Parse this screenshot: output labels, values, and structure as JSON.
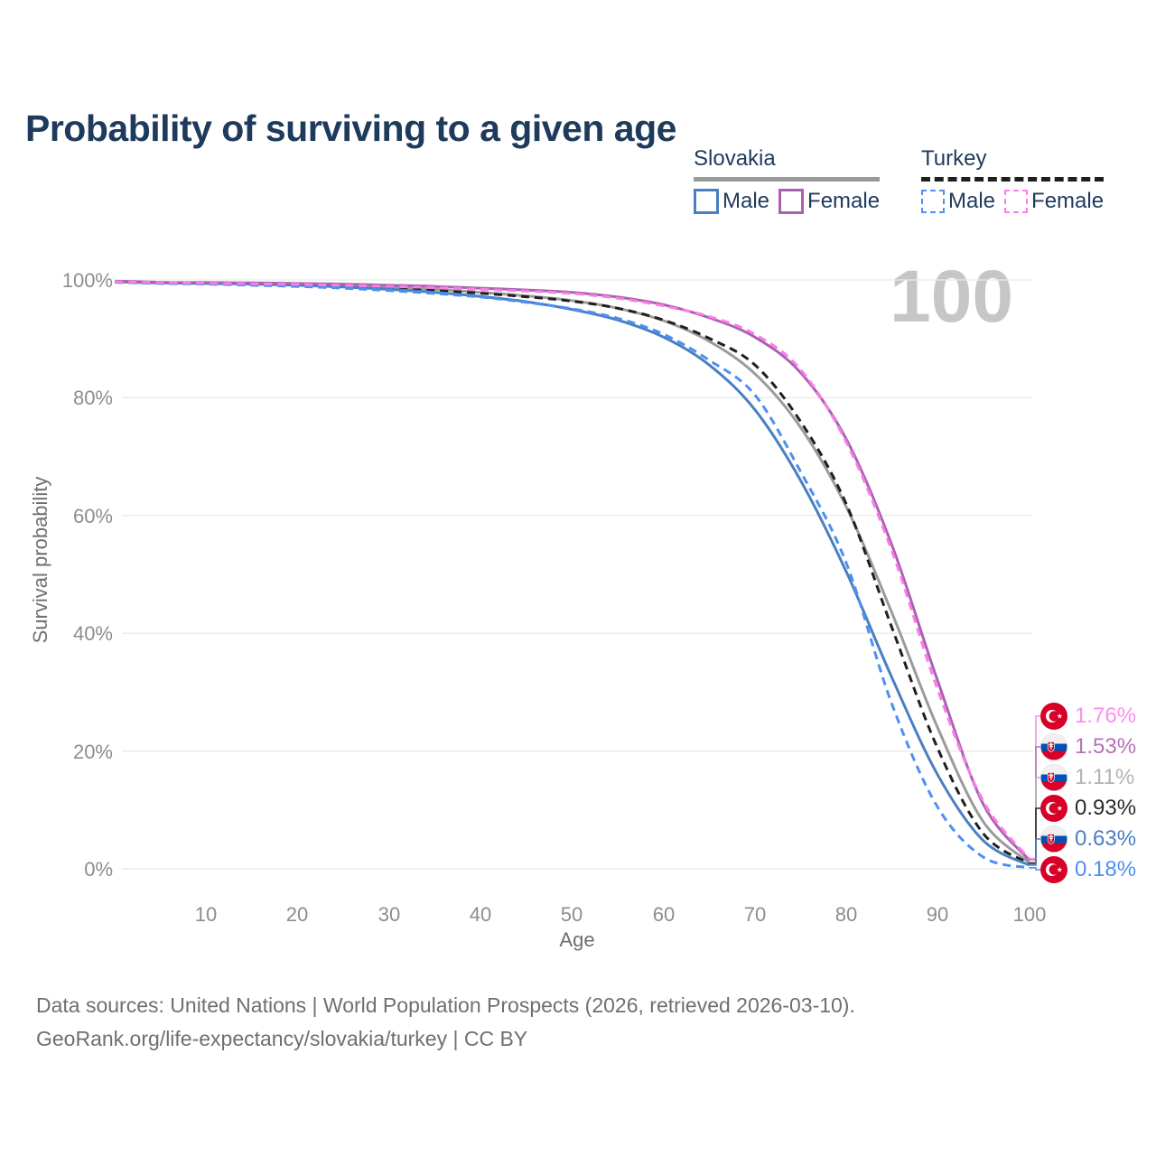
{
  "page": {
    "title": "Probability of surviving to a given age"
  },
  "legend": {
    "groups": [
      {
        "label": "Slovakia",
        "line_style": "solid",
        "underline_color": "#9a9a9a",
        "items": [
          {
            "label": "Male",
            "color": "#4a7fc1"
          },
          {
            "label": "Female",
            "color": "#aa62b0"
          }
        ]
      },
      {
        "label": "Turkey",
        "line_style": "dashed",
        "underline_color": "#1f1f1f",
        "items": [
          {
            "label": "Male",
            "color": "#4d8ff2"
          },
          {
            "label": "Female",
            "color": "#fb7ce8"
          }
        ]
      }
    ]
  },
  "chart_data": {
    "type": "line",
    "title": "Probability of surviving to a given age",
    "xlabel": "Age",
    "ylabel": "Survival probability",
    "xlim": [
      0,
      100
    ],
    "ylim": [
      0,
      100
    ],
    "grid": "horizontal",
    "x_ticks": [
      "10",
      "20",
      "30",
      "40",
      "50",
      "60",
      "70",
      "80",
      "90",
      "100"
    ],
    "y_ticks": [
      "100%",
      "80%",
      "60%",
      "40%",
      "20%",
      "0%"
    ],
    "age_marker": "100",
    "x": [
      0,
      5,
      10,
      15,
      20,
      25,
      30,
      35,
      40,
      45,
      50,
      55,
      60,
      65,
      70,
      75,
      80,
      85,
      90,
      95,
      100
    ],
    "series": [
      {
        "name": "Slovakia Male",
        "country": "slovakia",
        "sex": "male",
        "style": "solid",
        "color": "#4a7fc1",
        "values": [
          99.7,
          99.5,
          99.4,
          99.3,
          99.1,
          98.8,
          98.4,
          97.9,
          97.2,
          96.3,
          95.0,
          93.2,
          90.3,
          85.6,
          78.0,
          66.0,
          50.5,
          32.5,
          16.0,
          4.8,
          0.63
        ]
      },
      {
        "name": "Slovakia Female",
        "country": "slovakia",
        "sex": "female",
        "style": "solid",
        "color": "#aa62b0",
        "values": [
          99.8,
          99.6,
          99.55,
          99.5,
          99.4,
          99.3,
          99.1,
          98.9,
          98.6,
          98.3,
          97.9,
          97.1,
          95.8,
          93.6,
          90.3,
          84.3,
          73.0,
          55.0,
          32.0,
          11.0,
          1.53
        ]
      },
      {
        "name": "Slovakia Total",
        "country": "slovakia",
        "sex": "both",
        "style": "solid",
        "color": "#9b9b9b",
        "values": [
          99.75,
          99.55,
          99.45,
          99.38,
          99.25,
          99.05,
          98.75,
          98.4,
          97.9,
          97.3,
          96.5,
          95.2,
          93.1,
          89.6,
          84.1,
          75.0,
          61.5,
          43.5,
          24.0,
          8.0,
          1.11
        ]
      },
      {
        "name": "Turkey Male",
        "country": "turkey",
        "sex": "male",
        "style": "dashed",
        "color": "#4d8ff2",
        "values": [
          99.6,
          99.4,
          99.3,
          99.1,
          98.9,
          98.6,
          98.2,
          97.7,
          97.1,
          96.2,
          95.1,
          93.5,
          90.8,
          86.4,
          80.5,
          67.5,
          52.0,
          28.0,
          10.5,
          2.0,
          0.18
        ]
      },
      {
        "name": "Turkey Female",
        "country": "turkey",
        "sex": "female",
        "style": "dashed",
        "color": "#fb7ce8",
        "values": [
          99.7,
          99.55,
          99.45,
          99.35,
          99.25,
          99.1,
          98.9,
          98.7,
          98.4,
          98.1,
          97.7,
          96.9,
          95.6,
          93.8,
          90.8,
          84.8,
          72.5,
          54.0,
          30.5,
          11.5,
          1.76
        ]
      },
      {
        "name": "Turkey Total",
        "country": "turkey",
        "sex": "both",
        "style": "dashed",
        "color": "#1f1f1f",
        "values": [
          99.65,
          99.48,
          99.38,
          99.22,
          99.07,
          98.85,
          98.55,
          98.2,
          97.75,
          97.15,
          96.4,
          95.2,
          93.2,
          90.1,
          85.6,
          76.0,
          62.0,
          41.0,
          20.5,
          6.0,
          0.93
        ]
      }
    ],
    "end_labels": [
      {
        "value": "1.76%",
        "country": "turkey",
        "series": "Turkey Female",
        "color": "#fc8ef0"
      },
      {
        "value": "1.53%",
        "country": "slovakia",
        "series": "Slovakia Female",
        "color": "#b671b7"
      },
      {
        "value": "1.11%",
        "country": "slovakia",
        "series": "Slovakia Total",
        "color": "#b3b3b3"
      },
      {
        "value": "0.93%",
        "country": "turkey",
        "series": "Turkey Total",
        "color": "#2b2b2b"
      },
      {
        "value": "0.63%",
        "country": "slovakia",
        "series": "Slovakia Male",
        "color": "#4a7fc1"
      },
      {
        "value": "0.18%",
        "country": "turkey",
        "series": "Turkey Male",
        "color": "#4d8ff2"
      }
    ]
  },
  "footer": {
    "line1": "Data sources: United Nations | World Population Prospects (2026, retrieved 2026-03-10).",
    "line2": "GeoRank.org/life-expectancy/slovakia/turkey | CC BY"
  }
}
